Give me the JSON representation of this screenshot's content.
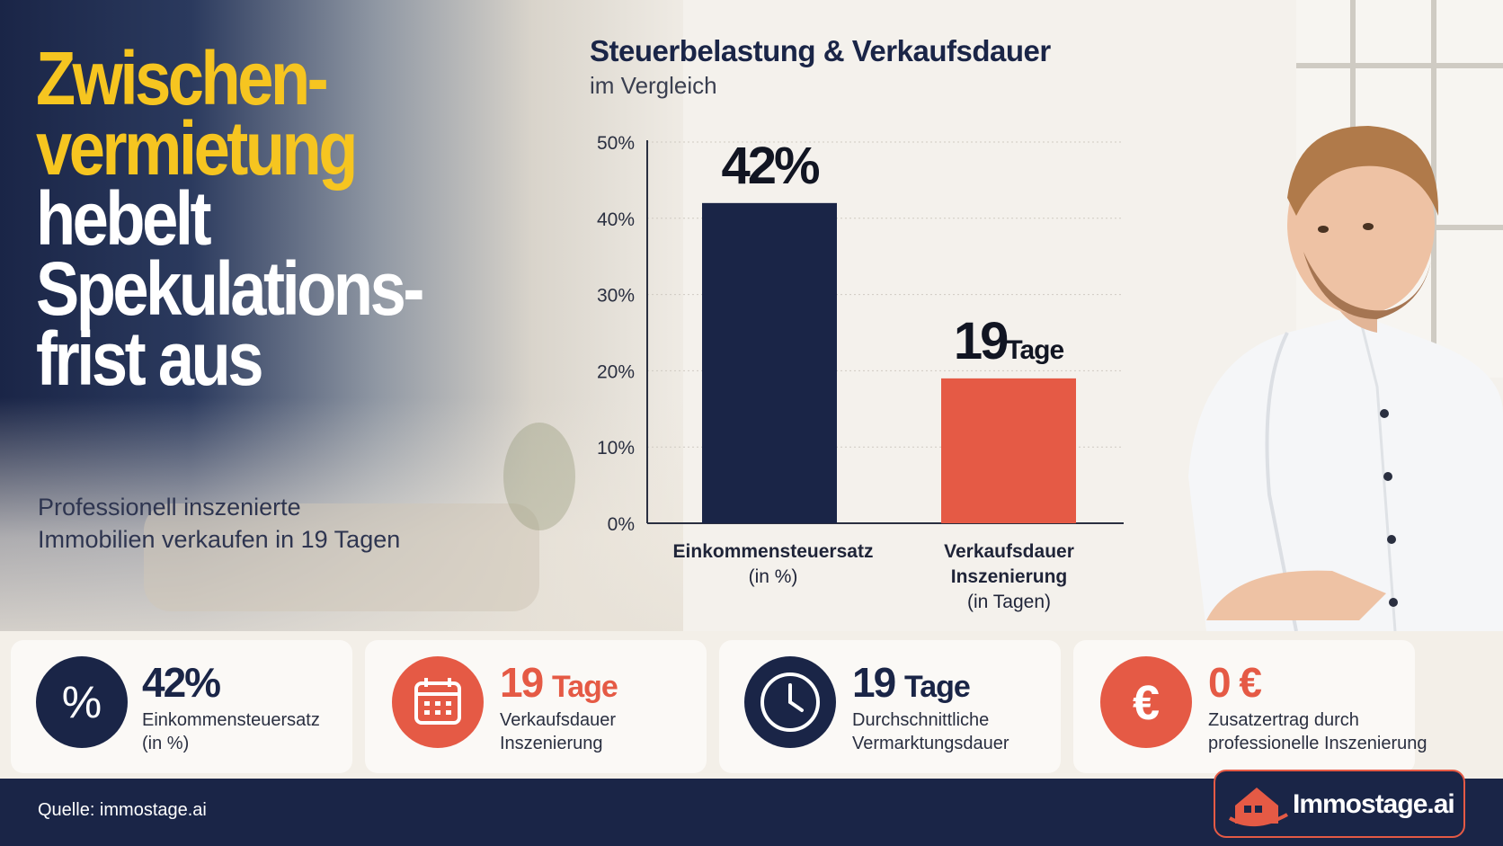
{
  "headline": {
    "line1": "Zwischen-",
    "line2": "vermietung",
    "line3": "hebelt",
    "line4": "Spekulations-",
    "line5": "frist aus"
  },
  "subline": {
    "line1": "Professionell inszenierte",
    "line2": "Immobilien verkaufen in 19 Tagen"
  },
  "chart_data": {
    "type": "bar",
    "title": "Steuerbelastung & Verkaufsdauer",
    "subtitle": "im Vergleich",
    "ylim": [
      0,
      50
    ],
    "yticks": [
      "0%",
      "10%",
      "20%",
      "30%",
      "40%",
      "50%"
    ],
    "grid": true,
    "categories": [
      {
        "label": "Einkommensteuersatz",
        "sublabel": "(in %)"
      },
      {
        "label": "Verkaufsdauer Inszenierung",
        "sublabel": "(in Tagen)"
      }
    ],
    "values": [
      42,
      19
    ],
    "data_labels": [
      {
        "value": "42%",
        "unit": ""
      },
      {
        "value": "19",
        "unit": "Tage"
      }
    ],
    "colors": [
      "#1a2547",
      "#e55a45"
    ]
  },
  "stats": [
    {
      "value": "42%",
      "unit": "",
      "desc1": "Einkommensteuersatz",
      "desc2": "(in %)",
      "icon": "percent-icon",
      "color": "navy"
    },
    {
      "value": "19",
      "unit": "Tage",
      "desc1": "Verkaufsdauer",
      "desc2": "Inszenierung",
      "icon": "calendar-icon",
      "color": "coral"
    },
    {
      "value": "19",
      "unit": "Tage",
      "desc1": "Durchschnittliche",
      "desc2": "Vermarktungsdauer",
      "icon": "clock-icon",
      "color": "navy"
    },
    {
      "value": "0 €",
      "unit": "",
      "desc1": "Zusatzertrag durch",
      "desc2": "professionelle Inszenierung",
      "icon": "euro-icon",
      "color": "coral"
    }
  ],
  "footer": {
    "source": "Quelle: immostage.ai",
    "brand_main": "Immostage",
    "brand_suffix": ".ai"
  },
  "colors": {
    "navy": "#1a2547",
    "coral": "#e55a45",
    "yellow": "#f6c520"
  }
}
